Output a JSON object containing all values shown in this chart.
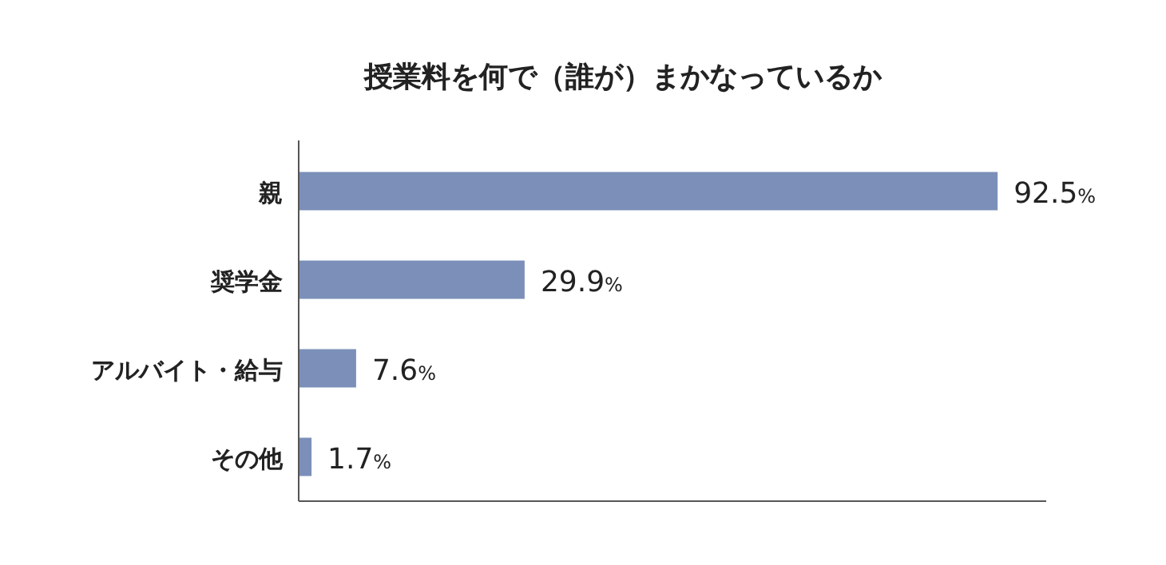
{
  "chart_data": {
    "type": "bar",
    "orientation": "horizontal",
    "title": "授業料を何で（誰が）まかなっているか",
    "categories": [
      "親",
      "奨学金",
      "アルバイト・給与",
      "その他"
    ],
    "values": [
      92.5,
      29.9,
      7.6,
      1.7
    ],
    "value_labels": [
      "92.5%",
      "29.9%",
      "7.6%",
      "1.7%"
    ],
    "color": "#7b8fb9"
  }
}
